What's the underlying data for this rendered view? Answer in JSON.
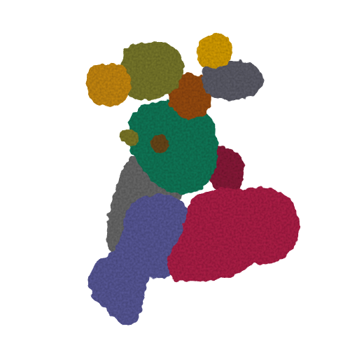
{
  "image": {
    "background": "#ffffff",
    "subject": "protein-complex-surface-render",
    "chains": [
      {
        "name": "olive",
        "color": "#7a7a2e"
      },
      {
        "name": "orange",
        "color": "#c98a12"
      },
      {
        "name": "gold",
        "color": "#d9a010"
      },
      {
        "name": "brown",
        "color": "#9a4e12"
      },
      {
        "name": "slate",
        "color": "#5f5f6a"
      },
      {
        "name": "teal",
        "color": "#137a5a"
      },
      {
        "name": "gray",
        "color": "#6b6b6b"
      },
      {
        "name": "purple",
        "color": "#5a5a9a"
      },
      {
        "name": "crimson",
        "color": "#b0234a"
      },
      {
        "name": "wine",
        "color": "#8a1f3a"
      }
    ]
  }
}
